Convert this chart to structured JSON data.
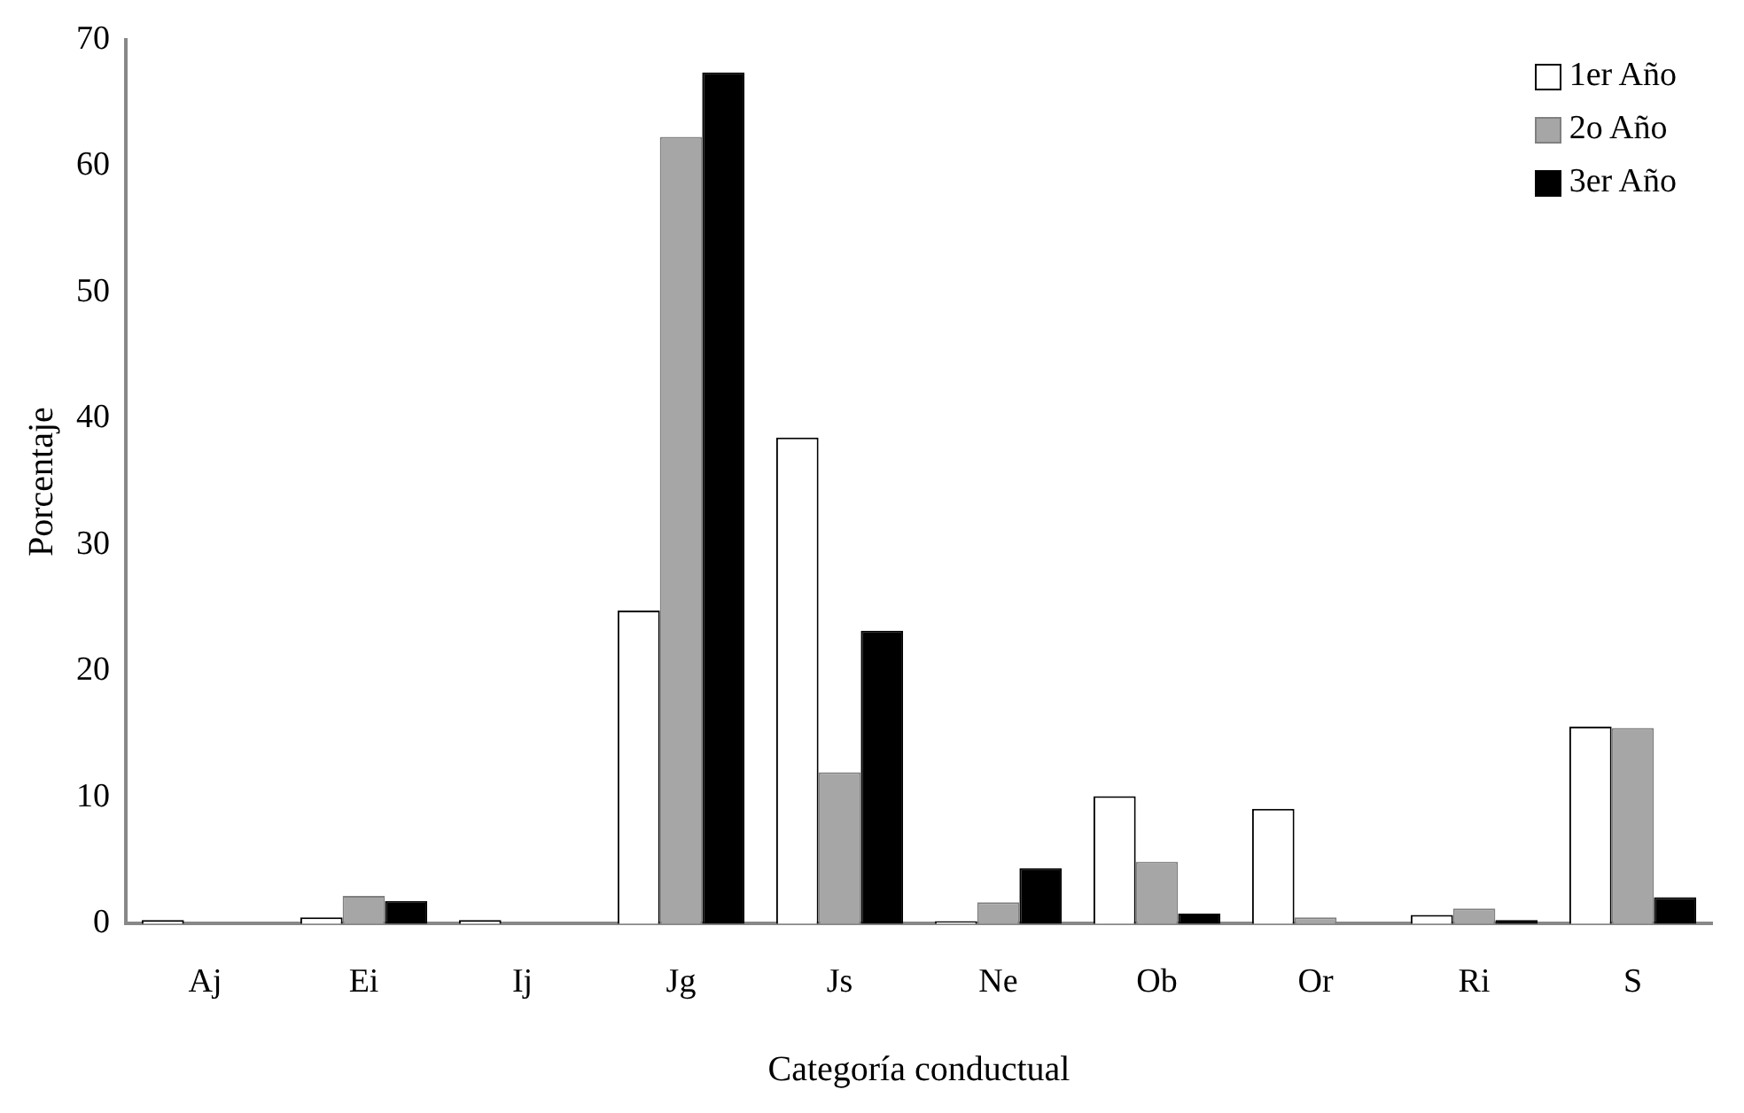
{
  "chart_data": {
    "type": "bar",
    "xlabel": "Categoría conductual",
    "ylabel": "Porcentaje",
    "categories": [
      "Aj",
      "Ei",
      "Ij",
      "Jg",
      "Js",
      "Ne",
      "Ob",
      "Or",
      "Ri",
      "S"
    ],
    "series": [
      {
        "name": "1er Año",
        "color": "#ffffff",
        "values": [
          0.3,
          0.5,
          0.3,
          24.8,
          38.5,
          0.2,
          10.1,
          9.1,
          0.7,
          15.6
        ]
      },
      {
        "name": "2o Año",
        "color": "#a6a6a6",
        "values": [
          0,
          2.2,
          0,
          62.3,
          12.0,
          1.7,
          4.9,
          0.5,
          1.2,
          15.5
        ]
      },
      {
        "name": "3er Año",
        "color": "#000000",
        "values": [
          0,
          1.8,
          0,
          67.4,
          23.2,
          4.4,
          0.8,
          0,
          0.3,
          2.1
        ]
      }
    ],
    "ylim": [
      0,
      70
    ],
    "yticks": [
      0,
      10,
      20,
      30,
      40,
      50,
      60,
      70
    ],
    "grid": false,
    "legend": "top right"
  }
}
